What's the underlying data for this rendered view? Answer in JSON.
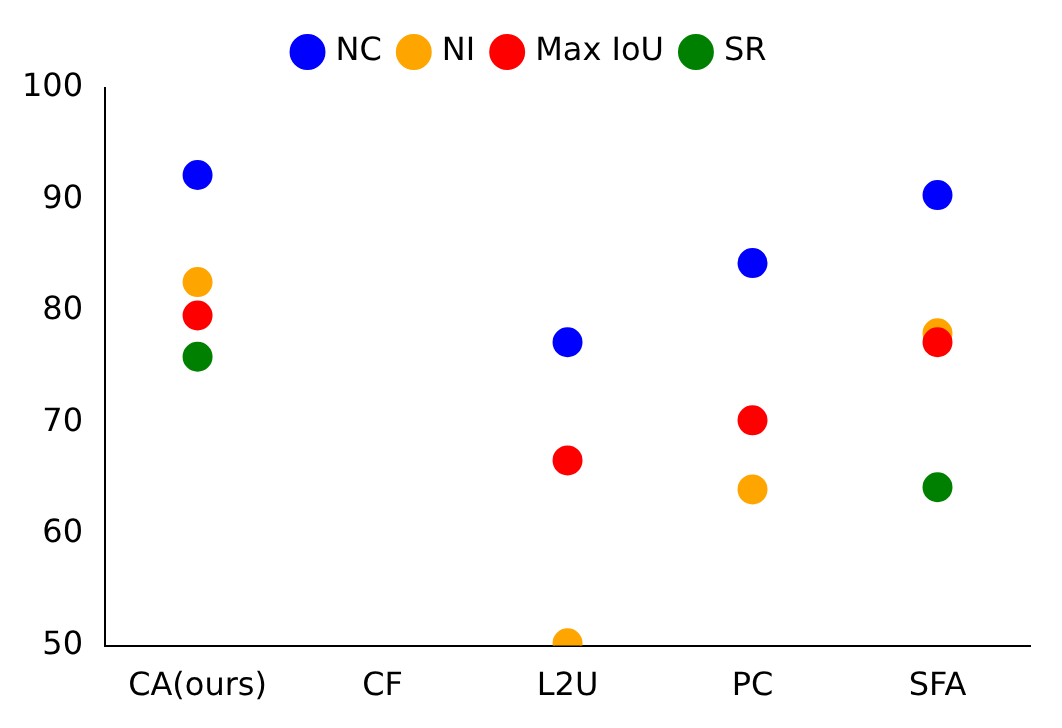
{
  "chart_data": {
    "type": "scatter",
    "categories": [
      "CA(ours)",
      "CF",
      "L2U",
      "PC",
      "SFA"
    ],
    "series": [
      {
        "name": "NC",
        "color": "#0000ff",
        "values": [
          92.2,
          null,
          77.2,
          84.3,
          90.4
        ]
      },
      {
        "name": "NI",
        "color": "#ffa500",
        "values": [
          82.6,
          null,
          50.2,
          64.0,
          78.0
        ]
      },
      {
        "name": "Max IoU",
        "color": "#ff0000",
        "values": [
          79.6,
          null,
          66.6,
          70.2,
          77.2
        ]
      },
      {
        "name": "SR",
        "color": "#008000",
        "values": [
          75.9,
          null,
          null,
          null,
          64.2
        ]
      }
    ],
    "ylim": [
      50,
      100
    ],
    "yticks": [
      50,
      60,
      70,
      80,
      90,
      100
    ],
    "grid": false,
    "legend": "top",
    "marker": "circle"
  }
}
